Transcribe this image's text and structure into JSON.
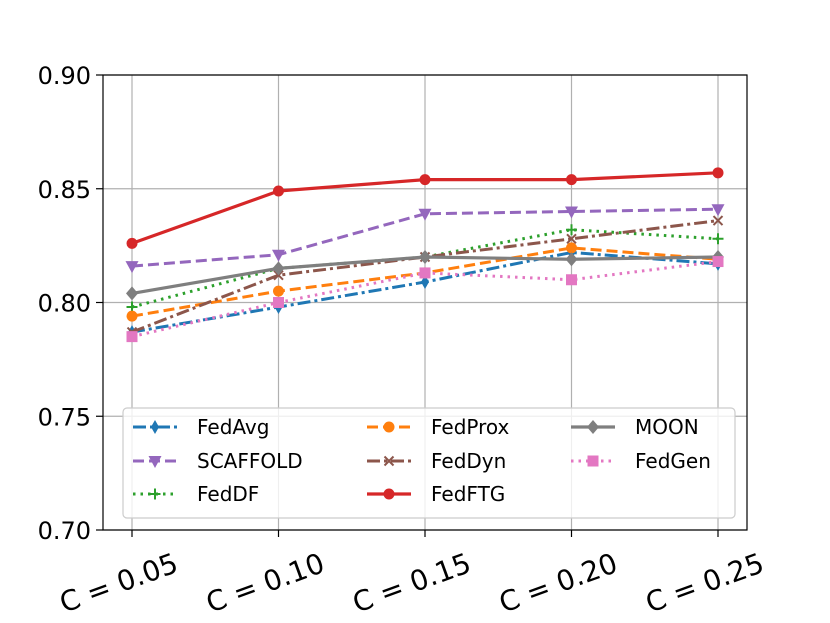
{
  "chart_data": {
    "type": "line",
    "title": "",
    "xlabel": "",
    "ylabel": "",
    "categories": [
      "C = 0.05",
      "C = 0.10",
      "C = 0.15",
      "C = 0.20",
      "C = 0.25"
    ],
    "ylim": [
      0.7,
      0.9
    ],
    "yticks": [
      "0.70",
      "0.75",
      "0.80",
      "0.85",
      "0.90"
    ],
    "yticks_values": [
      0.7,
      0.75,
      0.8,
      0.85,
      0.9
    ],
    "grid": true,
    "legend": "lower-center",
    "series": [
      {
        "name": "FedAvg",
        "color": "#1f77b4",
        "dash": "dashdot",
        "marker": "thin-diamond",
        "values": [
          0.787,
          0.798,
          0.809,
          0.822,
          0.817
        ]
      },
      {
        "name": "SCAFFOLD",
        "color": "#9467bd",
        "dash": "dashed",
        "marker": "triangle-down",
        "values": [
          0.816,
          0.821,
          0.839,
          0.84,
          0.841
        ]
      },
      {
        "name": "FedDF",
        "color": "#2ca02c",
        "dash": "dotted",
        "marker": "plus",
        "values": [
          0.798,
          0.815,
          0.82,
          0.832,
          0.828
        ]
      },
      {
        "name": "FedProx",
        "color": "#ff7f0e",
        "dash": "dashed",
        "marker": "circle",
        "values": [
          0.794,
          0.805,
          0.813,
          0.824,
          0.819
        ]
      },
      {
        "name": "FedDyn",
        "color": "#8c564b",
        "dash": "dashdot",
        "marker": "x",
        "values": [
          0.787,
          0.812,
          0.82,
          0.828,
          0.836
        ]
      },
      {
        "name": "FedFTG",
        "color": "#d62728",
        "dash": "solid",
        "marker": "circle",
        "values": [
          0.826,
          0.849,
          0.854,
          0.854,
          0.857
        ]
      },
      {
        "name": "MOON",
        "color": "#7f7f7f",
        "dash": "solid",
        "marker": "diamond",
        "values": [
          0.804,
          0.815,
          0.82,
          0.819,
          0.82
        ]
      },
      {
        "name": "FedGen",
        "color": "#e377c2",
        "dash": "dotted",
        "marker": "square",
        "values": [
          0.785,
          0.8,
          0.813,
          0.81,
          0.818
        ]
      }
    ]
  }
}
